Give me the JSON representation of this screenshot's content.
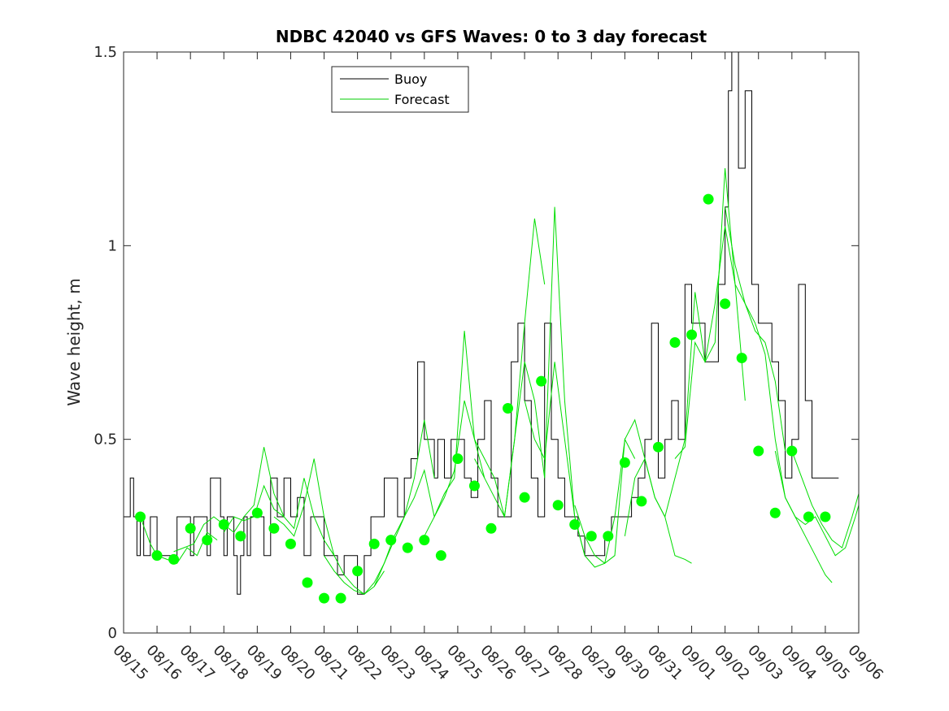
{
  "chart_data": {
    "type": "line",
    "title": "NDBC 42040 vs GFS Waves: 0 to 3 day forecast",
    "xlabel": "",
    "ylabel": "Wave height, m",
    "ylim": [
      0,
      1.5
    ],
    "xlim": [
      0,
      22
    ],
    "y_ticks": [
      0,
      0.5,
      1,
      1.5
    ],
    "y_tick_labels": [
      "0",
      "0.5",
      "1",
      "1.5"
    ],
    "x_tick_labels": [
      "08/15",
      "08/16",
      "08/17",
      "08/18",
      "08/19",
      "08/20",
      "08/21",
      "08/22",
      "08/23",
      "08/24",
      "08/25",
      "08/26",
      "08/27",
      "08/28",
      "08/29",
      "08/30",
      "08/31",
      "09/01",
      "09/02",
      "09/03",
      "09/04",
      "09/05",
      "09/06"
    ],
    "legend": {
      "position": "top-left",
      "entries": [
        {
          "label": "Buoy",
          "color": "#000000"
        },
        {
          "label": "Forecast",
          "color": "#00cc00"
        }
      ]
    },
    "colors": {
      "buoy": "#000000",
      "forecast": "#00dd00",
      "analysis": "#00ff00"
    },
    "series": [
      {
        "name": "Buoy",
        "x": [
          0,
          0.2,
          0.3,
          0.4,
          0.5,
          0.6,
          0.7,
          0.8,
          1.0,
          1.3,
          1.5,
          1.6,
          1.9,
          2.0,
          2.1,
          2.4,
          2.5,
          2.6,
          2.9,
          3.0,
          3.1,
          3.3,
          3.4,
          3.5,
          3.6,
          3.7,
          3.8,
          3.9,
          4.0,
          4.2,
          4.4,
          4.6,
          4.8,
          5.0,
          5.2,
          5.4,
          5.6,
          5.8,
          6.0,
          6.2,
          6.4,
          6.6,
          6.8,
          7.0,
          7.2,
          7.4,
          7.6,
          7.8,
          8.0,
          8.2,
          8.4,
          8.6,
          8.8,
          9.0,
          9.1,
          9.3,
          9.4,
          9.6,
          9.8,
          10.0,
          10.2,
          10.4,
          10.6,
          10.8,
          11.0,
          11.2,
          11.4,
          11.6,
          11.8,
          12.0,
          12.2,
          12.4,
          12.6,
          12.8,
          13.0,
          13.2,
          13.4,
          13.6,
          13.8,
          14.0,
          14.2,
          14.4,
          14.6,
          14.8,
          15.0,
          15.2,
          15.4,
          15.6,
          15.8,
          16.0,
          16.2,
          16.4,
          16.6,
          16.8,
          17.0,
          17.2,
          17.4,
          17.6,
          17.8,
          18.0,
          18.1,
          18.2,
          18.4,
          18.6,
          18.8,
          19.0,
          19.2,
          19.4,
          19.6,
          19.8,
          20.0,
          20.2,
          20.4,
          20.6,
          20.8,
          21.0,
          21.2,
          21.4
        ],
        "y": [
          0.3,
          0.4,
          0.3,
          0.2,
          0.3,
          0.2,
          0.2,
          0.3,
          0.2,
          0.2,
          0.2,
          0.3,
          0.3,
          0.2,
          0.3,
          0.3,
          0.2,
          0.4,
          0.3,
          0.2,
          0.3,
          0.2,
          0.1,
          0.2,
          0.3,
          0.2,
          0.3,
          0.3,
          0.3,
          0.2,
          0.4,
          0.3,
          0.4,
          0.3,
          0.35,
          0.2,
          0.3,
          0.3,
          0.2,
          0.2,
          0.15,
          0.2,
          0.2,
          0.1,
          0.2,
          0.3,
          0.3,
          0.4,
          0.4,
          0.3,
          0.4,
          0.45,
          0.7,
          0.5,
          0.5,
          0.4,
          0.5,
          0.4,
          0.5,
          0.5,
          0.4,
          0.35,
          0.5,
          0.6,
          0.4,
          0.3,
          0.3,
          0.7,
          0.8,
          0.6,
          0.4,
          0.3,
          0.8,
          0.5,
          0.4,
          0.3,
          0.3,
          0.25,
          0.2,
          0.2,
          0.2,
          0.25,
          0.3,
          0.3,
          0.3,
          0.35,
          0.4,
          0.5,
          0.8,
          0.4,
          0.5,
          0.6,
          0.5,
          0.9,
          0.8,
          0.8,
          0.7,
          0.7,
          0.9,
          1.1,
          1.4,
          1.5,
          1.2,
          1.4,
          0.9,
          0.8,
          0.8,
          0.7,
          0.6,
          0.4,
          0.5,
          0.9,
          0.6,
          0.4,
          0.4,
          0.4,
          0.4,
          0.4
        ]
      },
      {
        "name": "Forecast",
        "x": [
          0.5,
          0.8,
          1.0,
          1.3,
          1.6,
          1.9,
          2.2,
          2.5,
          2.8
        ],
        "y": [
          0.3,
          0.23,
          0.2,
          0.19,
          0.18,
          0.22,
          0.2,
          0.26,
          0.24
        ]
      },
      {
        "name": "Forecast",
        "x": [
          1.5,
          1.8,
          2.1,
          2.4,
          2.7,
          3.0,
          3.3,
          3.6,
          3.9,
          4.2,
          4.5,
          4.8
        ],
        "y": [
          0.21,
          0.22,
          0.23,
          0.28,
          0.3,
          0.28,
          0.26,
          0.3,
          0.33,
          0.48,
          0.36,
          0.3
        ]
      },
      {
        "name": "Forecast",
        "x": [
          3.0,
          3.3,
          3.6,
          3.9,
          4.2,
          4.5,
          4.8,
          5.1,
          5.4,
          5.7,
          6.0,
          6.3
        ],
        "y": [
          0.26,
          0.3,
          0.29,
          0.3,
          0.38,
          0.32,
          0.3,
          0.27,
          0.4,
          0.3,
          0.24,
          0.2
        ]
      },
      {
        "name": "Forecast",
        "x": [
          4.5,
          4.8,
          5.1,
          5.4,
          5.7,
          6.0,
          6.3,
          6.6,
          6.9,
          7.2,
          7.5,
          7.8
        ],
        "y": [
          0.3,
          0.28,
          0.25,
          0.33,
          0.45,
          0.3,
          0.2,
          0.15,
          0.12,
          0.1,
          0.12,
          0.16
        ]
      },
      {
        "name": "Forecast",
        "x": [
          6.0,
          6.3,
          6.6,
          6.9,
          7.2,
          7.5,
          7.8,
          8.1,
          8.4,
          8.7,
          9.0,
          9.3
        ],
        "y": [
          0.2,
          0.16,
          0.13,
          0.11,
          0.1,
          0.13,
          0.18,
          0.25,
          0.3,
          0.4,
          0.55,
          0.4
        ]
      },
      {
        "name": "Forecast",
        "x": [
          7.5,
          7.8,
          8.1,
          8.4,
          8.7,
          9.0,
          9.3,
          9.6,
          9.9,
          10.2,
          10.5,
          10.8
        ],
        "y": [
          0.12,
          0.18,
          0.24,
          0.3,
          0.35,
          0.42,
          0.3,
          0.36,
          0.4,
          0.78,
          0.5,
          0.4
        ]
      },
      {
        "name": "Forecast",
        "x": [
          9.0,
          9.3,
          9.6,
          9.9,
          10.2,
          10.5,
          10.8,
          11.1,
          11.4,
          11.7,
          12.0,
          12.3,
          12.6
        ],
        "y": [
          0.25,
          0.3,
          0.35,
          0.42,
          0.6,
          0.5,
          0.45,
          0.4,
          0.3,
          0.5,
          0.8,
          1.07,
          0.9
        ]
      },
      {
        "name": "Forecast",
        "x": [
          10.5,
          10.8,
          11.1,
          11.4,
          11.7,
          12.0,
          12.3,
          12.6,
          12.9,
          13.2,
          13.5,
          13.8
        ],
        "y": [
          0.45,
          0.4,
          0.35,
          0.3,
          0.5,
          0.7,
          0.6,
          0.4,
          1.1,
          0.6,
          0.3,
          0.2
        ]
      },
      {
        "name": "Forecast",
        "x": [
          12.0,
          12.3,
          12.6,
          12.9,
          13.2,
          13.5,
          13.8,
          14.1,
          14.4,
          14.7,
          15.0,
          15.3
        ],
        "y": [
          0.6,
          0.5,
          0.45,
          0.7,
          0.5,
          0.3,
          0.2,
          0.17,
          0.18,
          0.3,
          0.5,
          0.45
        ]
      },
      {
        "name": "Forecast",
        "x": [
          13.5,
          13.8,
          14.1,
          14.4,
          14.7,
          15.0,
          15.3,
          15.6,
          15.9,
          16.2,
          16.5,
          16.8,
          17.0
        ],
        "y": [
          0.33,
          0.25,
          0.2,
          0.18,
          0.2,
          0.5,
          0.55,
          0.45,
          0.35,
          0.3,
          0.2,
          0.19,
          0.18
        ]
      },
      {
        "name": "Forecast",
        "x": [
          15.0,
          15.3,
          15.6,
          15.9,
          16.2,
          16.5,
          16.8,
          17.1,
          17.4,
          17.7,
          18.0,
          18.3,
          18.6
        ],
        "y": [
          0.25,
          0.4,
          0.45,
          0.35,
          0.3,
          0.4,
          0.5,
          0.88,
          0.7,
          0.75,
          1.2,
          0.9,
          0.6
        ]
      },
      {
        "name": "Forecast",
        "x": [
          16.5,
          16.8,
          17.1,
          17.4,
          17.7,
          18.0,
          18.3,
          18.6,
          18.9,
          19.2,
          19.5,
          19.8
        ],
        "y": [
          0.45,
          0.48,
          0.75,
          0.7,
          0.85,
          1.05,
          0.9,
          0.85,
          0.78,
          0.75,
          0.65,
          0.47
        ]
      },
      {
        "name": "Forecast",
        "x": [
          18.0,
          18.3,
          18.6,
          18.9,
          19.2,
          19.5,
          19.8,
          20.1,
          20.4,
          20.7,
          21.0,
          21.2
        ],
        "y": [
          1.1,
          0.95,
          0.85,
          0.8,
          0.72,
          0.5,
          0.35,
          0.3,
          0.25,
          0.2,
          0.15,
          0.13
        ]
      },
      {
        "name": "Forecast",
        "x": [
          19.5,
          19.8,
          20.1,
          20.4,
          20.7,
          21.0,
          21.3,
          21.6,
          21.9,
          22.0
        ],
        "y": [
          0.47,
          0.35,
          0.3,
          0.28,
          0.3,
          0.25,
          0.2,
          0.22,
          0.3,
          0.33
        ]
      },
      {
        "name": "Forecast",
        "x": [
          20.0,
          20.3,
          20.6,
          20.9,
          21.2,
          21.5,
          21.8,
          22.0
        ],
        "y": [
          0.47,
          0.4,
          0.33,
          0.28,
          0.24,
          0.22,
          0.3,
          0.36
        ]
      }
    ],
    "markers": {
      "name": "Forecast analysis",
      "x": [
        0.5,
        1.0,
        1.5,
        2.0,
        2.5,
        3.0,
        3.5,
        4.0,
        4.5,
        5.0,
        5.5,
        6.0,
        6.5,
        7.0,
        7.5,
        8.0,
        8.5,
        9.0,
        9.5,
        10.0,
        10.5,
        11.0,
        11.5,
        12.0,
        12.5,
        13.0,
        13.5,
        14.0,
        14.5,
        15.0,
        15.5,
        16.0,
        16.5,
        17.0,
        17.5,
        18.0,
        18.5,
        19.0,
        19.5,
        20.0,
        20.5,
        21.0
      ],
      "y": [
        0.3,
        0.2,
        0.19,
        0.27,
        0.24,
        0.28,
        0.25,
        0.31,
        0.27,
        0.23,
        0.13,
        0.09,
        0.09,
        0.16,
        0.23,
        0.24,
        0.22,
        0.24,
        0.2,
        0.45,
        0.38,
        0.27,
        0.58,
        0.35,
        0.65,
        0.33,
        0.28,
        0.25,
        0.25,
        0.44,
        0.34,
        0.48,
        0.75,
        0.77,
        1.12,
        0.85,
        0.71,
        0.47,
        0.31,
        0.47,
        0.3,
        0.3
      ]
    }
  }
}
